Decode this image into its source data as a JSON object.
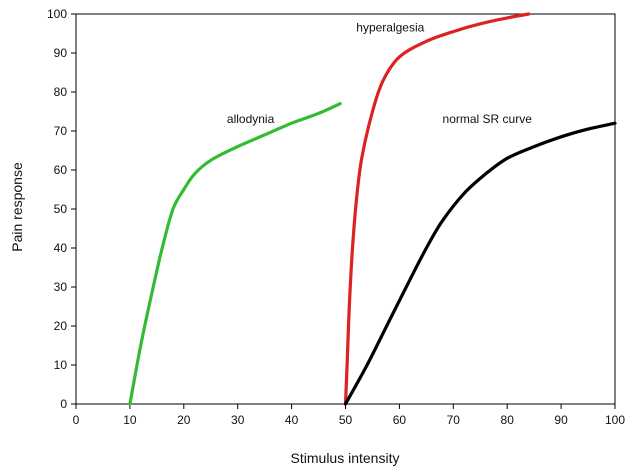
{
  "chart_data": {
    "type": "line",
    "xlabel": "Stimulus intensity",
    "ylabel": "Pain response",
    "xlim": [
      0,
      100
    ],
    "ylim": [
      0,
      100
    ],
    "x_ticks": [
      0,
      10,
      20,
      30,
      40,
      50,
      60,
      70,
      80,
      90,
      100
    ],
    "y_ticks": [
      0,
      10,
      20,
      30,
      40,
      50,
      60,
      70,
      80,
      90,
      100
    ],
    "grid": false,
    "series": [
      {
        "name": "allodynia",
        "color": "#33bb33",
        "points": [
          [
            10,
            0
          ],
          [
            12,
            15
          ],
          [
            14,
            28
          ],
          [
            16,
            40
          ],
          [
            18,
            50
          ],
          [
            20,
            55
          ],
          [
            22,
            59
          ],
          [
            25,
            62.5
          ],
          [
            30,
            66
          ],
          [
            35,
            69
          ],
          [
            40,
            72
          ],
          [
            45,
            74.5
          ],
          [
            49,
            77
          ]
        ]
      },
      {
        "name": "hyperalgesia",
        "color": "#dd2222",
        "points": [
          [
            50,
            0
          ],
          [
            50.3,
            10
          ],
          [
            50.7,
            25
          ],
          [
            51.3,
            40
          ],
          [
            52,
            52
          ],
          [
            53,
            63
          ],
          [
            55,
            75
          ],
          [
            57,
            83
          ],
          [
            60,
            89
          ],
          [
            65,
            93
          ],
          [
            70,
            95.5
          ],
          [
            75,
            97.5
          ],
          [
            80,
            99
          ],
          [
            84,
            100
          ]
        ]
      },
      {
        "name": "normal SR curve",
        "color": "#000000",
        "points": [
          [
            50,
            0
          ],
          [
            54,
            10
          ],
          [
            58,
            21
          ],
          [
            62,
            32
          ],
          [
            65,
            40
          ],
          [
            68,
            47
          ],
          [
            72,
            54
          ],
          [
            76,
            59
          ],
          [
            80,
            63
          ],
          [
            85,
            66
          ],
          [
            90,
            68.5
          ],
          [
            95,
            70.5
          ],
          [
            100,
            72
          ]
        ]
      }
    ],
    "annotations": [
      {
        "text": "allodynia",
        "x": 28,
        "y": 72
      },
      {
        "text": "hyperalgesia",
        "x": 52,
        "y": 95.5
      },
      {
        "text": "normal SR curve",
        "x": 68,
        "y": 72
      }
    ]
  }
}
